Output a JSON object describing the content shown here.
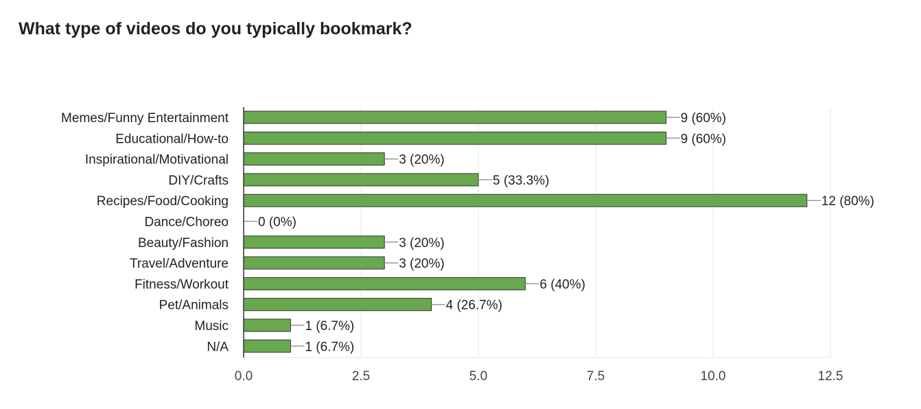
{
  "title": "What type of videos do you typically bookmark?",
  "chart_data": {
    "type": "bar",
    "orientation": "horizontal",
    "categories": [
      "Memes/Funny Entertainment",
      "Educational/How-to",
      "Inspirational/Motivational",
      "DIY/Crafts",
      "Recipes/Food/Cooking",
      "Dance/Choreo",
      "Beauty/Fashion",
      "Travel/Adventure",
      "Fitness/Workout",
      "Pet/Animals",
      "Music",
      "N/A"
    ],
    "values": [
      9,
      9,
      3,
      5,
      12,
      0,
      3,
      3,
      6,
      4,
      1,
      1
    ],
    "data_labels": [
      "9 (60%)",
      "9 (60%)",
      "3 (20%)",
      "5 (33.3%)",
      "12 (80%)",
      "0 (0%)",
      "3 (20%)",
      "3 (20%)",
      "6 (40%)",
      "4 (26.7%)",
      "1 (6.7%)",
      "1 (6.7%)"
    ],
    "xlim": [
      0,
      12.5
    ],
    "x_ticks": [
      "0.0",
      "2.5",
      "5.0",
      "7.5",
      "10.0",
      "12.5"
    ],
    "grid": true,
    "bar_color": "#6aa84f"
  }
}
